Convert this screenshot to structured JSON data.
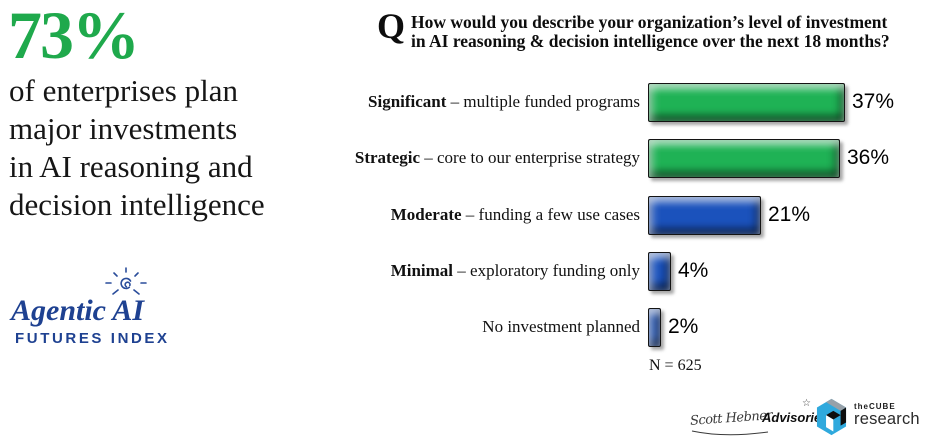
{
  "page": {
    "background": "#ffffff"
  },
  "left_panel": {
    "headline_value": "73%",
    "headline_color": "#1FA94C",
    "subheadline_lines": [
      "of enterprises plan",
      "major investments",
      "in AI reasoning and",
      "decision intelligence"
    ],
    "logo": {
      "name": "Agentic AI",
      "tagline": "FUTURES INDEX",
      "color": "#1e4191",
      "icon": "sun-spiral-icon"
    }
  },
  "chart_data": {
    "type": "bar",
    "orientation": "horizontal",
    "question_prefix": "Q",
    "title_line1": "How would you describe your organization’s level of investment",
    "title_line2": "in AI reasoning & decision intelligence over the next 18 months?",
    "note": "N = 625",
    "categories": [
      "Significant – multiple funded programs",
      "Strategic – core to our enterprise strategy",
      "Moderate – funding a few use cases",
      "Minimal – exploratory funding only",
      "No investment planned"
    ],
    "values": [
      37,
      36,
      21,
      4,
      2
    ],
    "value_suffix": "%",
    "colors": {
      "green": "#1FB255",
      "blue": "#1B52BC"
    },
    "legend": "none",
    "grid": "off",
    "items": [
      {
        "label_bold": "Significant",
        "label_rest": " – multiple funded programs",
        "value": 37,
        "value_label": "37%",
        "color": "#1FB255"
      },
      {
        "label_bold": "Strategic",
        "label_rest": " – core to our enterprise strategy",
        "value": 36,
        "value_label": "36%",
        "color": "#1FB255"
      },
      {
        "label_bold": "Moderate",
        "label_rest": " – funding a few use cases",
        "value": 21,
        "value_label": "21%",
        "color": "#1B52BC"
      },
      {
        "label_bold": "Minimal",
        "label_rest": " – exploratory funding only",
        "value": 4,
        "value_label": "4%",
        "color": "#1B52BC"
      },
      {
        "label_bold": "",
        "label_rest": "No investment planned",
        "value": 2,
        "value_label": "2%",
        "color": "#1B52BC"
      }
    ]
  },
  "footer": {
    "signature": {
      "script": "Scott Hebner",
      "bold": "Advisories",
      "star": "☆",
      "icon": "star-icon"
    },
    "thecube": {
      "top": "theCUBE",
      "bottom": "research",
      "icon": "cube-icon",
      "icon_color": "#2FA9DD"
    }
  }
}
